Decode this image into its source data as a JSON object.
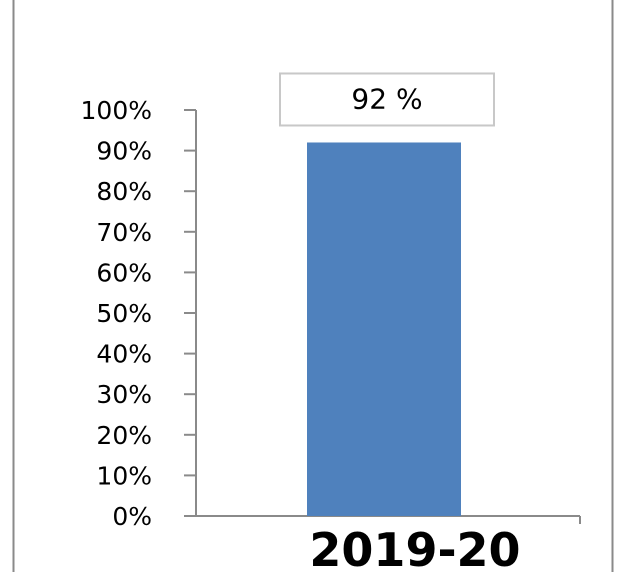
{
  "chart_data": {
    "type": "bar",
    "categories": [
      "2019-20"
    ],
    "values": [
      92
    ],
    "data_labels": [
      "92 %"
    ],
    "yticks": [
      "0%",
      "10%",
      "20%",
      "30%",
      "40%",
      "50%",
      "60%",
      "70%",
      "80%",
      "90%",
      "100%"
    ],
    "ylim": [
      0,
      100
    ],
    "grid": false,
    "legend": "none",
    "bar_color": "#4F81BD"
  }
}
